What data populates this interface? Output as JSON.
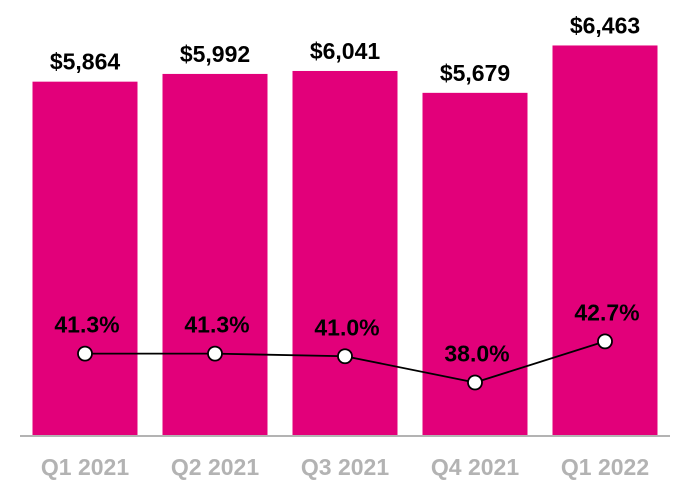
{
  "chart_data": {
    "type": "bar",
    "categories": [
      "Q1 2021",
      "Q2 2021",
      "Q3 2021",
      "Q4 2021",
      "Q1 2022"
    ],
    "series": [
      {
        "type": "bar",
        "values": [
          5864,
          5992,
          6041,
          5679,
          6463
        ],
        "labels": [
          "$5,864",
          "$5,992",
          "$6,041",
          "$5,679",
          "$6,463"
        ],
        "color": "#e2007a"
      },
      {
        "type": "line",
        "values": [
          41.3,
          41.3,
          41.0,
          38.0,
          42.7
        ],
        "labels": [
          "41.3%",
          "41.3%",
          "41.0%",
          "38.0%",
          "42.7%"
        ],
        "color": "#000000",
        "marker_fill": "#ffffff"
      }
    ],
    "bar_ylim": [
      0,
      7050
    ],
    "line_ylim": [
      0,
      100
    ],
    "grid": false,
    "legend": "none",
    "axis_color": "#b3b3b3",
    "tick_color": "#b3b3b3"
  }
}
